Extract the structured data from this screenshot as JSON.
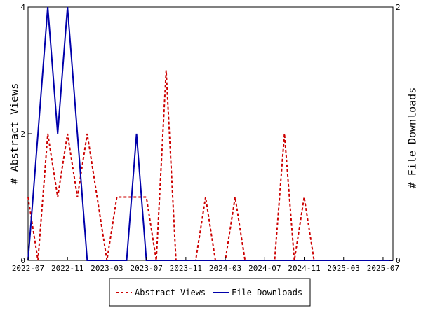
{
  "chart_data": {
    "type": "line",
    "title": "",
    "xlabel": "",
    "ylabel_left": "# Abstract Views",
    "ylabel_right": "# File Downloads",
    "x_ticks": [
      "2022-07",
      "2022-11",
      "2023-03",
      "2023-07",
      "2023-11",
      "2024-03",
      "2024-07",
      "2024-11",
      "2025-03",
      "2025-07"
    ],
    "y_left_ticks": [
      "0",
      "2",
      "4"
    ],
    "y_right_ticks": [
      "0",
      "2"
    ],
    "y_left_range": [
      0,
      4
    ],
    "y_right_range": [
      0,
      2
    ],
    "grid": false,
    "legend_position": "bottom",
    "x": [
      "2022-07",
      "2022-08",
      "2022-09",
      "2022-10",
      "2022-11",
      "2022-12",
      "2023-01",
      "2023-02",
      "2023-03",
      "2023-04",
      "2023-05",
      "2023-06",
      "2023-07",
      "2023-08",
      "2023-09",
      "2023-10",
      "2023-11",
      "2023-12",
      "2024-01",
      "2024-02",
      "2024-03",
      "2024-04",
      "2024-05",
      "2024-06",
      "2024-07",
      "2024-08",
      "2024-09",
      "2024-10",
      "2024-11",
      "2024-12",
      "2025-01",
      "2025-02",
      "2025-03",
      "2025-04",
      "2025-05",
      "2025-06",
      "2025-07",
      "2025-08"
    ],
    "series": [
      {
        "name": "Abstract Views",
        "axis": "left",
        "color": "#cc0000",
        "style": "dashed",
        "values": [
          1,
          0,
          2,
          1,
          2,
          1,
          2,
          1,
          0,
          1,
          1,
          1,
          1,
          0,
          3,
          0,
          0,
          0,
          1,
          0,
          0,
          1,
          0,
          0,
          0,
          0,
          2,
          0,
          1,
          0,
          0,
          0,
          0,
          0,
          0,
          0,
          0,
          0
        ]
      },
      {
        "name": "File Downloads",
        "axis": "right",
        "color": "#0000aa",
        "style": "solid",
        "values": [
          0,
          1,
          2,
          1,
          2,
          1,
          0,
          0,
          0,
          0,
          0,
          1,
          0,
          0,
          0,
          0,
          0,
          0,
          0,
          0,
          0,
          0,
          0,
          0,
          0,
          0,
          0,
          0,
          0,
          0,
          0,
          0,
          0,
          0,
          0,
          0,
          0,
          0
        ]
      }
    ]
  }
}
